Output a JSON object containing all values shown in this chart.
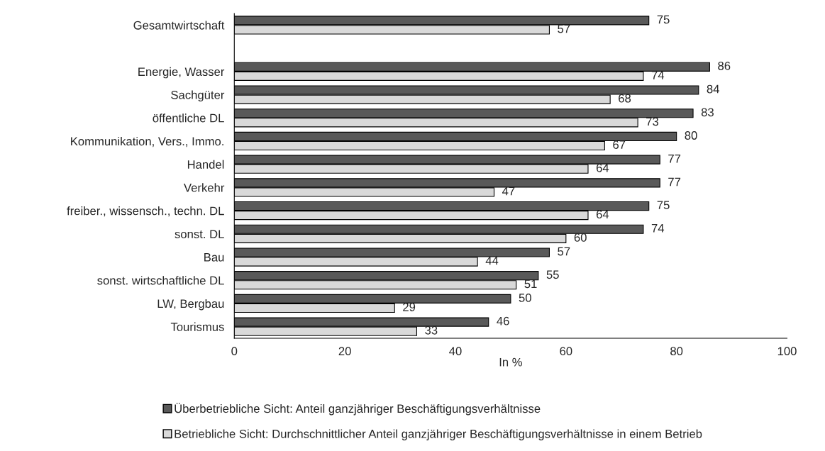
{
  "chart_data": {
    "type": "bar",
    "orientation": "horizontal",
    "xlabel": "In %",
    "categories": [
      "Gesamtwirtschaft",
      null,
      "Energie, Wasser",
      "Sachgüter",
      "öffentliche DL",
      "Kommunikation, Vers., Immo.",
      "Handel",
      "Verkehr",
      "freiber., wissensch., techn. DL",
      "sonst. DL",
      "Bau",
      "sonst. wirtschaftliche DL",
      "LW, Bergbau",
      "Tourismus"
    ],
    "series": [
      {
        "name": "Überbetriebliche Sicht: Anteil ganzjähriger Beschäftigungsverhältnisse",
        "color": "#595959",
        "values": [
          75,
          null,
          86,
          84,
          83,
          80,
          77,
          77,
          75,
          74,
          57,
          55,
          50,
          46
        ]
      },
      {
        "name": "Betriebliche Sicht: Durchschnittlicher Anteil ganzjähriger Beschäftigungsverhältnisse in einem Betrieb",
        "color": "#d9d9d9",
        "values": [
          57,
          null,
          74,
          68,
          73,
          67,
          64,
          47,
          64,
          60,
          44,
          51,
          29,
          33
        ]
      }
    ],
    "xlim": [
      0,
      100
    ],
    "xticks": [
      0,
      20,
      40,
      60,
      80,
      100
    ],
    "data_labels": true,
    "grid": false,
    "legend": "bottom"
  }
}
